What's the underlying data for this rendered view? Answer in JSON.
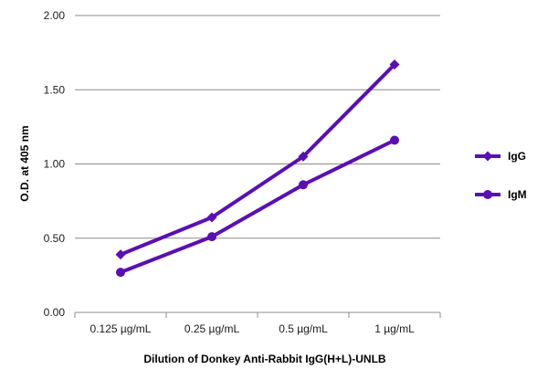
{
  "chart_data": {
    "type": "line",
    "title": "",
    "xlabel": "Dilution of Donkey Anti-Rabbit IgG(H+L)-UNLB",
    "ylabel": "O.D. at 405 nm",
    "categories": [
      "0.125 µg/mL",
      "0.25 µg/mL",
      "0.5 µg/mL",
      "1 µg/mL"
    ],
    "ylim": [
      0,
      2.0
    ],
    "yticks": [
      "0.00",
      "0.50",
      "1.00",
      "1.50",
      "2.00"
    ],
    "grid": true,
    "legend_position": "right",
    "series": [
      {
        "name": "IgG",
        "marker": "diamond",
        "color": "#5a0fb4",
        "values": [
          0.39,
          0.64,
          1.05,
          1.67
        ]
      },
      {
        "name": "IgM",
        "marker": "circle",
        "color": "#5a0fb4",
        "values": [
          0.27,
          0.51,
          0.86,
          1.16
        ]
      }
    ]
  }
}
